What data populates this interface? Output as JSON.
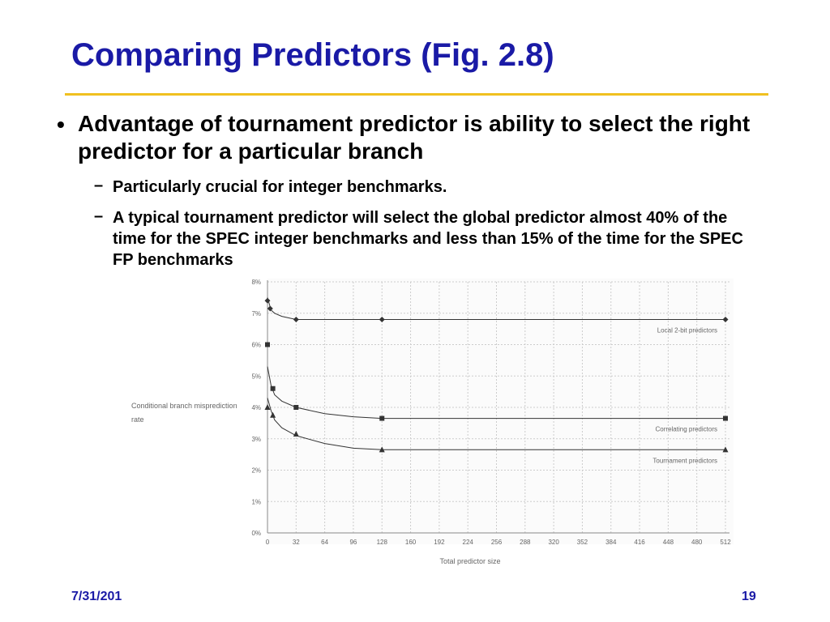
{
  "slide": {
    "title": "Comparing Predictors (Fig. 2.8)",
    "bullet": "Advantage of tournament predictor is ability to select the right predictor for a particular branch",
    "subbullets": [
      "Particularly crucial for integer benchmarks.",
      "A typical tournament predictor will select the global predictor almost 40% of the time for the SPEC integer benchmarks and less than 15% of the time for the SPEC FP benchmarks"
    ],
    "bullet_marker": "•",
    "sub_marker": "–"
  },
  "footer": {
    "date": "7/31/201",
    "page": "19"
  },
  "colors": {
    "title": "#1a1aa6",
    "rule": "#f0c020",
    "grid": "#cccccc",
    "series": "#333333"
  },
  "chart_data": {
    "type": "line",
    "ylabel": "Conditional branch misprediction rate",
    "xlabel": "Total predictor size",
    "xlim": [
      0,
      512
    ],
    "ylim": [
      0,
      8
    ],
    "xticks": [
      0,
      32,
      64,
      96,
      128,
      160,
      192,
      224,
      256,
      288,
      320,
      352,
      384,
      416,
      448,
      480,
      512
    ],
    "yticks": [
      "0%",
      "1%",
      "2%",
      "3%",
      "4%",
      "5%",
      "6%",
      "7%",
      "8%"
    ],
    "grid": true,
    "series": [
      {
        "name": "Local 2-bit predictors",
        "marker": "diamond",
        "curve": [
          [
            0,
            7.5
          ],
          [
            4,
            7.1
          ],
          [
            8,
            7.0
          ],
          [
            16,
            6.9
          ],
          [
            32,
            6.8
          ],
          [
            128,
            6.8
          ],
          [
            512,
            6.8
          ]
        ],
        "points": [
          [
            0,
            7.4
          ],
          [
            3,
            7.15
          ],
          [
            32,
            6.8
          ],
          [
            128,
            6.8
          ],
          [
            512,
            6.8
          ]
        ]
      },
      {
        "name": "Correlating predictors",
        "marker": "square",
        "curve": [
          [
            0,
            5.3
          ],
          [
            4,
            4.7
          ],
          [
            8,
            4.4
          ],
          [
            16,
            4.2
          ],
          [
            32,
            4.0
          ],
          [
            64,
            3.8
          ],
          [
            96,
            3.7
          ],
          [
            128,
            3.65
          ],
          [
            512,
            3.65
          ]
        ],
        "points": [
          [
            0,
            6.0
          ],
          [
            6,
            4.6
          ],
          [
            32,
            4.0
          ],
          [
            128,
            3.65
          ],
          [
            512,
            3.65
          ]
        ]
      },
      {
        "name": "Tournament predictors",
        "marker": "triangle",
        "curve": [
          [
            0,
            4.3
          ],
          [
            4,
            3.9
          ],
          [
            8,
            3.6
          ],
          [
            16,
            3.35
          ],
          [
            32,
            3.1
          ],
          [
            64,
            2.85
          ],
          [
            96,
            2.7
          ],
          [
            128,
            2.65
          ],
          [
            512,
            2.65
          ]
        ],
        "points": [
          [
            0,
            4.0
          ],
          [
            6,
            3.75
          ],
          [
            32,
            3.15
          ],
          [
            128,
            2.65
          ],
          [
            512,
            2.65
          ]
        ]
      }
    ]
  }
}
